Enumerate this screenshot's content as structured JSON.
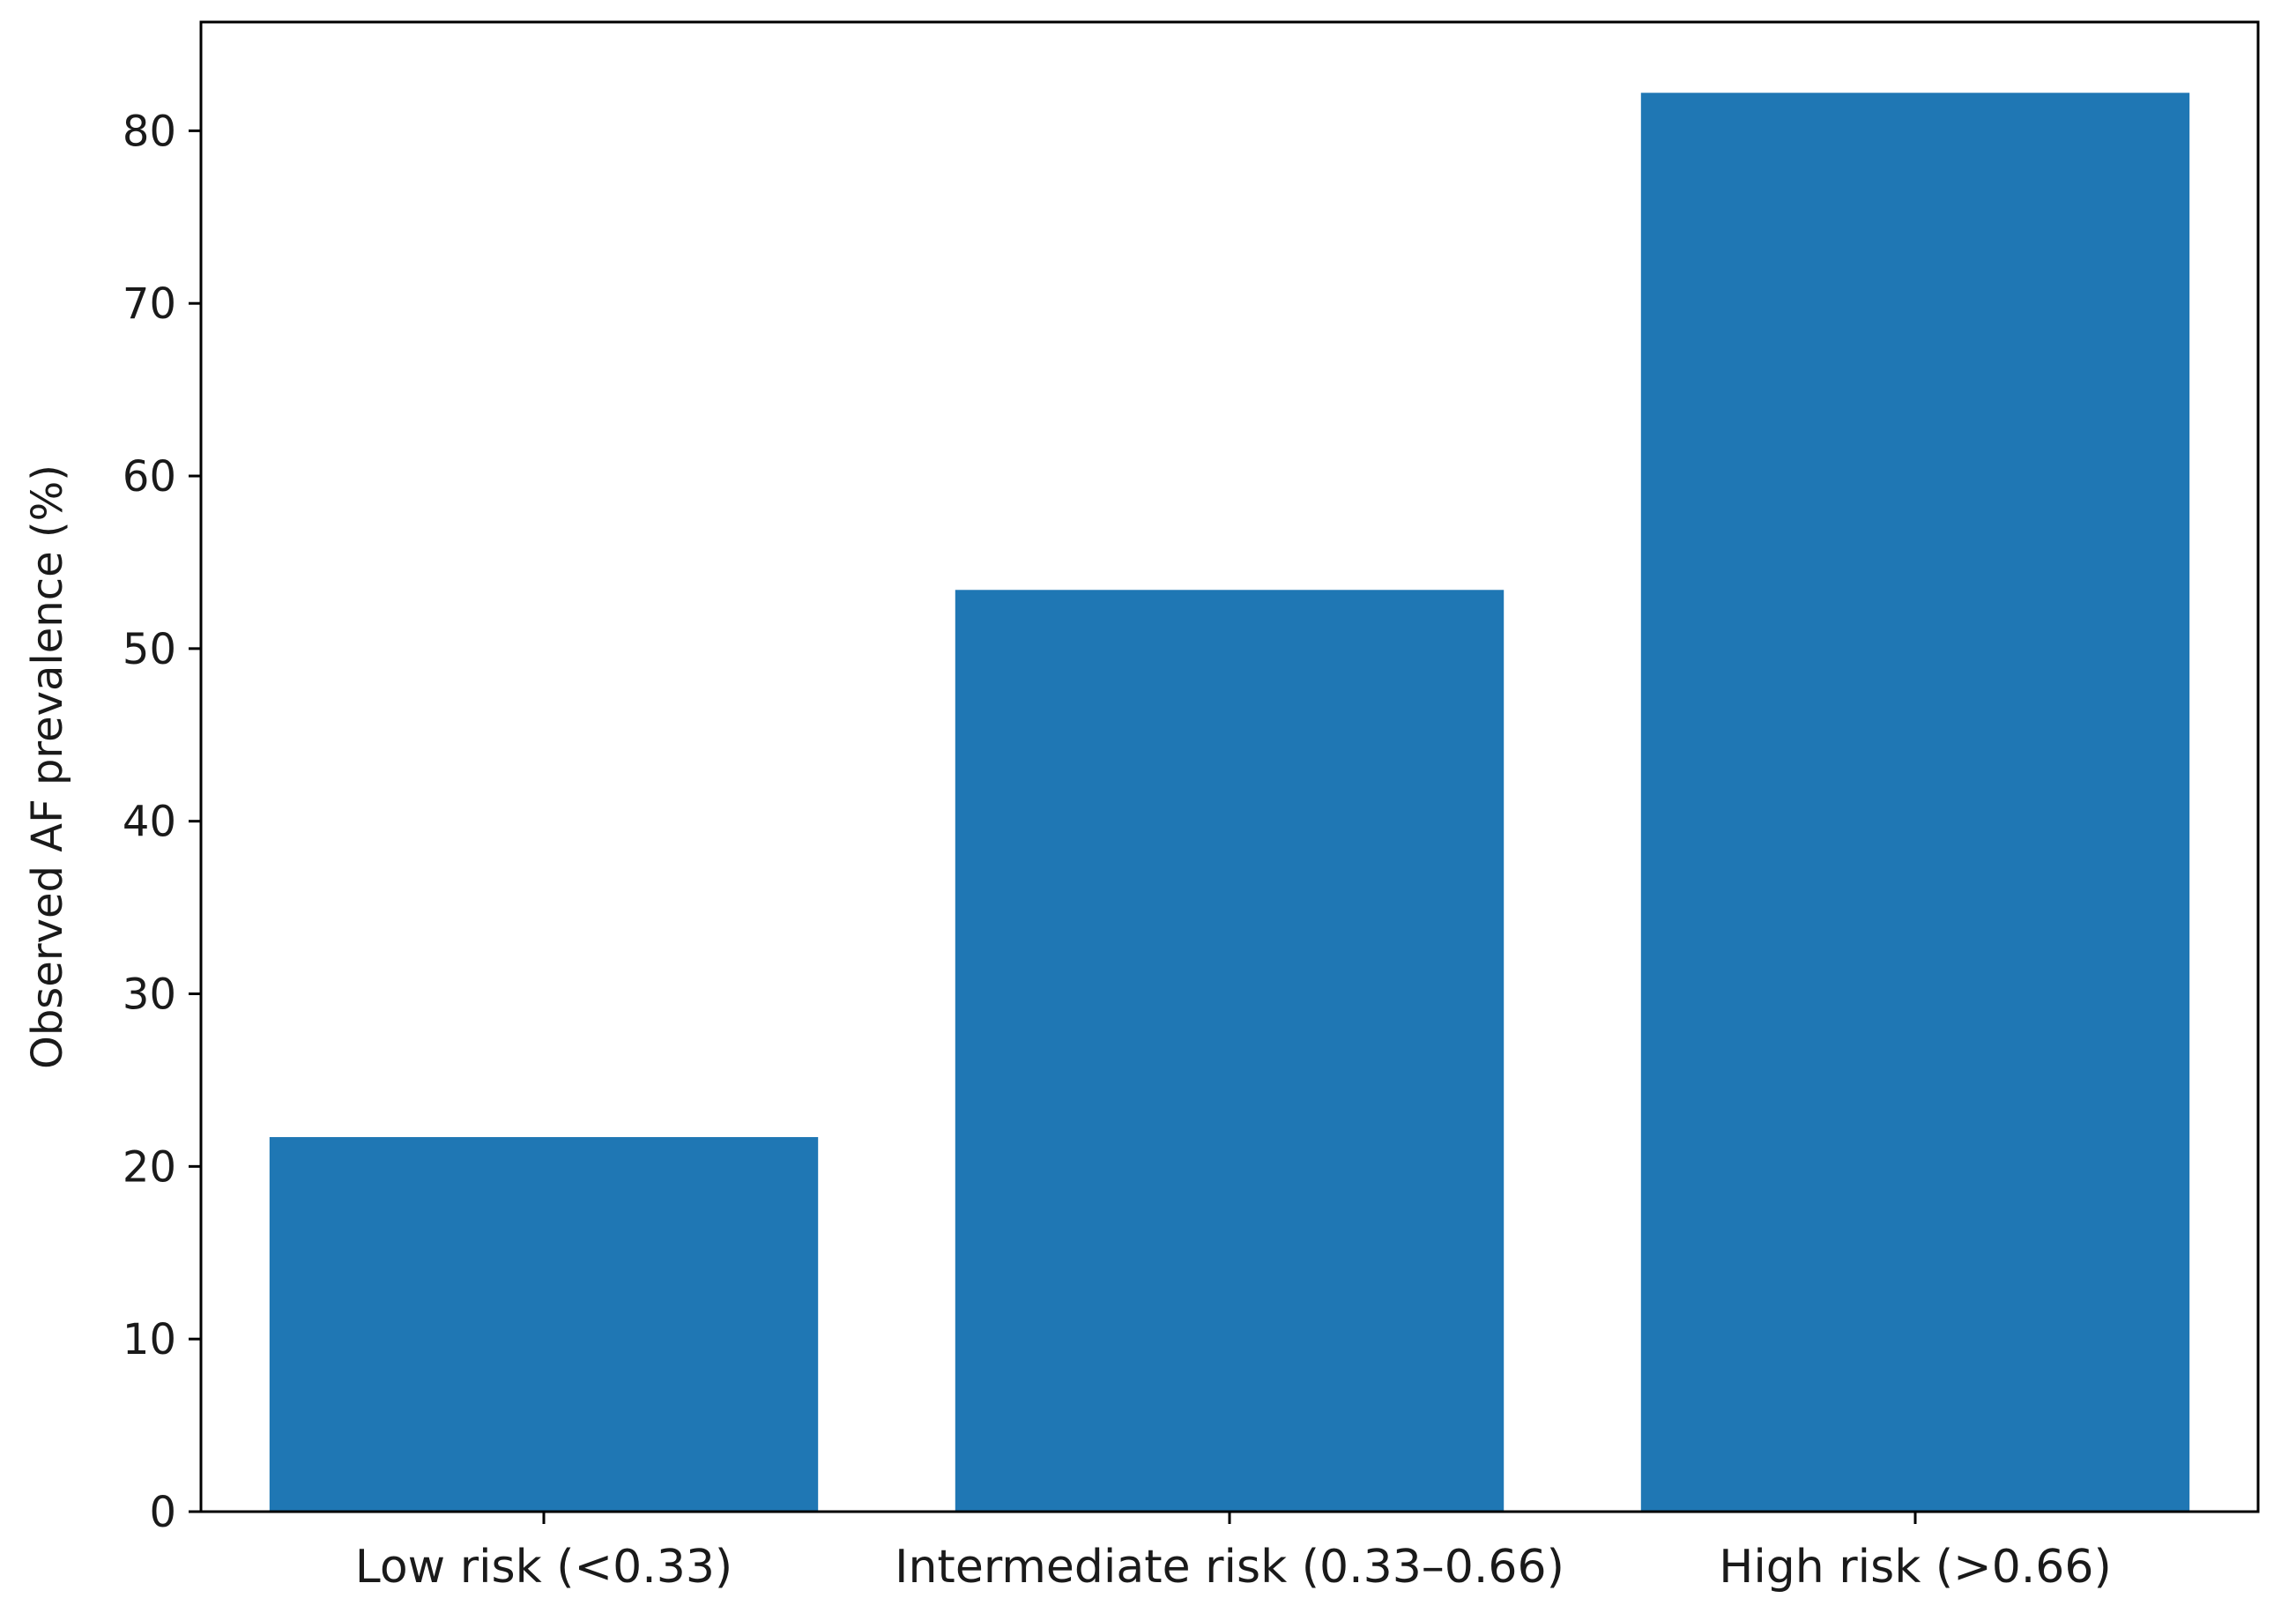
{
  "chart_data": {
    "type": "bar",
    "title": "",
    "xlabel": "",
    "ylabel": "Observed AF prevalence (%)",
    "categories": [
      "Low risk (<0.33)",
      "Intermediate risk (0.33–0.66)",
      "High risk (>0.66)"
    ],
    "values": [
      21.7,
      53.4,
      82.2
    ],
    "ylim": [
      0,
      86.3
    ],
    "yticks": [
      0,
      10,
      20,
      30,
      40,
      50,
      60,
      70,
      80
    ],
    "grid": false,
    "legend": "none",
    "bar_color": "#1f77b4"
  }
}
